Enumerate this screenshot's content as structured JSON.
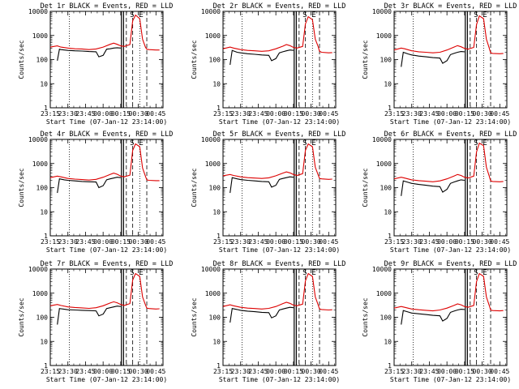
{
  "chart_data": {
    "type": "line",
    "y_scale": "log",
    "ylim": [
      1,
      10000
    ],
    "y_tick_values": [
      1,
      10,
      100,
      1000,
      10000
    ],
    "y_tick_labels": [
      "1",
      "10",
      "100",
      "1000",
      "10000"
    ],
    "x_range_hours": [
      23.25,
      24.85
    ],
    "x_tick_values": [
      23.25,
      23.5,
      23.75,
      24.0,
      24.25,
      24.5,
      24.75
    ],
    "x_tick_labels": [
      "23:15",
      "23:30",
      "23:45",
      "00:00",
      "00:15",
      "00:30",
      "00:45"
    ],
    "ylabel": "Counts/sec",
    "xlabel": "Start Time (07-Jan-12 23:14:00)",
    "dotted_lines_hours": [
      23.52,
      24.52
    ],
    "solid_lines_hours": [
      24.26,
      24.29
    ],
    "dashed_lines_hours": [
      24.33,
      24.42,
      24.62
    ],
    "markers": [
      {
        "label": "S",
        "x_hours": 24.41
      },
      {
        "label": "E",
        "x_hours": 24.54
      }
    ],
    "series_legend": {
      "black": "Events",
      "red": "LLD"
    },
    "panels": [
      {
        "title": "Det 1r BLACK = Events, RED = LLD",
        "series": [
          {
            "name": "Events",
            "color": "#000000",
            "x": [
              23.35,
              23.38,
              23.4,
              23.45,
              23.5,
              23.6,
              23.7,
              23.8,
              23.9,
              23.94,
              24.0,
              24.05,
              24.1,
              24.15,
              24.2,
              24.25
            ],
            "y": [
              90,
              270,
              260,
              250,
              240,
              230,
              225,
              215,
              210,
              130,
              150,
              270,
              280,
              300,
              310,
              300
            ]
          },
          {
            "name": "LLD",
            "color": "#dd0000",
            "x": [
              23.25,
              23.35,
              23.4,
              23.5,
              23.6,
              23.7,
              23.8,
              23.9,
              24.0,
              24.1,
              24.15,
              24.2,
              24.25,
              24.3,
              24.38,
              24.42,
              24.46,
              24.52,
              24.56,
              24.6,
              24.62,
              24.65,
              24.75,
              24.8
            ],
            "y": [
              330,
              370,
              330,
              300,
              280,
              275,
              260,
              275,
              330,
              430,
              480,
              430,
              370,
              350,
              420,
              4000,
              7000,
              5000,
              700,
              330,
              270,
              260,
              250,
              250
            ]
          }
        ]
      },
      {
        "title": "Det 2r BLACK = Events, RED = LLD",
        "series": [
          {
            "name": "Events",
            "color": "#000000",
            "x": [
              23.35,
              23.38,
              23.45,
              23.5,
              23.6,
              23.7,
              23.8,
              23.9,
              23.94,
              24.0,
              24.05,
              24.1,
              24.15,
              24.2,
              24.25
            ],
            "y": [
              60,
              240,
              200,
              190,
              175,
              165,
              155,
              150,
              90,
              110,
              190,
              210,
              230,
              250,
              240
            ]
          },
          {
            "name": "LLD",
            "color": "#dd0000",
            "x": [
              23.25,
              23.35,
              23.4,
              23.5,
              23.6,
              23.7,
              23.8,
              23.9,
              24.0,
              24.1,
              24.15,
              24.2,
              24.25,
              24.3,
              24.38,
              24.42,
              24.46,
              24.52,
              24.56,
              24.6,
              24.62,
              24.65,
              24.75,
              24.8
            ],
            "y": [
              280,
              330,
              300,
              260,
              240,
              230,
              220,
              230,
              280,
              360,
              420,
              380,
              320,
              300,
              350,
              3000,
              6000,
              4500,
              700,
              350,
              220,
              200,
              190,
              195
            ]
          }
        ]
      },
      {
        "title": "Det 3r BLACK = Events, RED = LLD",
        "series": [
          {
            "name": "Events",
            "color": "#000000",
            "x": [
              23.35,
              23.38,
              23.45,
              23.5,
              23.6,
              23.7,
              23.8,
              23.9,
              23.94,
              24.0,
              24.05,
              24.1,
              24.15,
              24.2,
              24.25
            ],
            "y": [
              50,
              200,
              170,
              155,
              140,
              130,
              120,
              115,
              70,
              90,
              160,
              180,
              200,
              215,
              210
            ]
          },
          {
            "name": "LLD",
            "color": "#dd0000",
            "x": [
              23.25,
              23.35,
              23.4,
              23.5,
              23.6,
              23.7,
              23.8,
              23.9,
              24.0,
              24.1,
              24.15,
              24.2,
              24.25,
              24.3,
              24.38,
              24.42,
              24.46,
              24.52,
              24.56,
              24.6,
              24.62,
              24.65,
              24.75,
              24.8
            ],
            "y": [
              250,
              300,
              280,
              230,
              210,
              200,
              190,
              200,
              250,
              330,
              380,
              340,
              290,
              270,
              320,
              2800,
              6500,
              5000,
              700,
              300,
              190,
              180,
              175,
              180
            ]
          }
        ]
      },
      {
        "title": "Det 4r BLACK = Events, RED = LLD",
        "series": [
          {
            "name": "Events",
            "color": "#000000",
            "x": [
              23.35,
              23.38,
              23.45,
              23.5,
              23.6,
              23.7,
              23.8,
              23.9,
              23.94,
              24.0,
              24.05,
              24.1,
              24.15,
              24.2,
              24.25
            ],
            "y": [
              60,
              230,
              210,
              200,
              190,
              180,
              175,
              170,
              100,
              120,
              210,
              230,
              250,
              270,
              260
            ]
          },
          {
            "name": "LLD",
            "color": "#dd0000",
            "x": [
              23.25,
              23.35,
              23.4,
              23.5,
              23.6,
              23.7,
              23.8,
              23.9,
              24.0,
              24.1,
              24.15,
              24.2,
              24.25,
              24.3,
              24.38,
              24.42,
              24.46,
              24.52,
              24.56,
              24.6,
              24.62,
              24.65,
              24.75,
              24.8
            ],
            "y": [
              260,
              300,
              280,
              240,
              225,
              215,
              205,
              220,
              270,
              350,
              400,
              360,
              300,
              280,
              330,
              3500,
              6500,
              5000,
              650,
              300,
              210,
              200,
              195,
              195
            ]
          }
        ]
      },
      {
        "title": "Det 5r BLACK = Events, RED = LLD",
        "series": [
          {
            "name": "Events",
            "color": "#000000",
            "x": [
              23.35,
              23.38,
              23.45,
              23.5,
              23.6,
              23.7,
              23.8,
              23.9,
              23.94,
              24.0,
              24.05,
              24.1,
              24.15,
              24.2,
              24.25
            ],
            "y": [
              60,
              260,
              230,
              215,
              200,
              190,
              180,
              175,
              105,
              125,
              220,
              240,
              260,
              280,
              270
            ]
          },
          {
            "name": "LLD",
            "color": "#dd0000",
            "x": [
              23.25,
              23.35,
              23.4,
              23.5,
              23.6,
              23.7,
              23.8,
              23.9,
              24.0,
              24.1,
              24.15,
              24.2,
              24.25,
              24.3,
              24.38,
              24.42,
              24.46,
              24.52,
              24.56,
              24.6,
              24.62,
              24.65,
              24.75,
              24.8
            ],
            "y": [
              310,
              350,
              320,
              280,
              260,
              250,
              240,
              255,
              310,
              400,
              450,
              410,
              350,
              320,
              380,
              3500,
              6500,
              5000,
              700,
              340,
              240,
              230,
              220,
              225
            ]
          }
        ]
      },
      {
        "title": "Det 6r BLACK = Events, RED = LLD",
        "series": [
          {
            "name": "Events",
            "color": "#000000",
            "x": [
              23.35,
              23.38,
              23.45,
              23.5,
              23.6,
              23.7,
              23.8,
              23.9,
              23.94,
              24.0,
              24.05,
              24.1,
              24.15,
              24.2,
              24.25
            ],
            "y": [
              45,
              190,
              165,
              150,
              135,
              125,
              115,
              110,
              65,
              85,
              150,
              170,
              190,
              210,
              200
            ]
          },
          {
            "name": "LLD",
            "color": "#dd0000",
            "x": [
              23.25,
              23.35,
              23.4,
              23.5,
              23.6,
              23.7,
              23.8,
              23.9,
              24.0,
              24.1,
              24.15,
              24.2,
              24.25,
              24.3,
              24.38,
              24.42,
              24.46,
              24.52,
              24.56,
              24.6,
              24.62,
              24.65,
              24.75,
              24.8
            ],
            "y": [
              230,
              270,
              250,
              210,
              195,
              185,
              175,
              190,
              230,
              300,
              350,
              320,
              270,
              250,
              300,
              3000,
              7000,
              5500,
              700,
              300,
              190,
              180,
              175,
              180
            ]
          }
        ]
      },
      {
        "title": "Det 7r BLACK = Events, RED = LLD",
        "series": [
          {
            "name": "Events",
            "color": "#000000",
            "x": [
              23.35,
              23.38,
              23.45,
              23.5,
              23.6,
              23.7,
              23.8,
              23.9,
              23.94,
              24.0,
              24.05,
              24.1,
              24.15,
              24.2,
              24.25
            ],
            "y": [
              50,
              230,
              215,
              205,
              200,
              195,
              190,
              185,
              115,
              135,
              230,
              250,
              270,
              290,
              280
            ]
          },
          {
            "name": "LLD",
            "color": "#dd0000",
            "x": [
              23.25,
              23.35,
              23.4,
              23.5,
              23.6,
              23.7,
              23.8,
              23.9,
              24.0,
              24.1,
              24.15,
              24.2,
              24.25,
              24.3,
              24.38,
              24.42,
              24.46,
              24.52,
              24.56,
              24.6,
              24.62,
              24.65,
              24.75,
              24.8
            ],
            "y": [
              300,
              340,
              310,
              270,
              255,
              245,
              235,
              250,
              300,
              390,
              440,
              400,
              340,
              310,
              370,
              3500,
              6500,
              5000,
              700,
              330,
              240,
              230,
              220,
              225
            ]
          }
        ]
      },
      {
        "title": "Det 8r BLACK = Events, RED = LLD",
        "series": [
          {
            "name": "Events",
            "color": "#000000",
            "x": [
              23.35,
              23.38,
              23.45,
              23.5,
              23.6,
              23.7,
              23.8,
              23.9,
              23.94,
              24.0,
              24.05,
              24.1,
              24.15,
              24.2,
              24.25
            ],
            "y": [
              60,
              230,
              210,
              195,
              180,
              170,
              160,
              155,
              95,
              115,
              200,
              220,
              240,
              260,
              250
            ]
          },
          {
            "name": "LLD",
            "color": "#dd0000",
            "x": [
              23.25,
              23.35,
              23.4,
              23.5,
              23.6,
              23.7,
              23.8,
              23.9,
              24.0,
              24.1,
              24.15,
              24.2,
              24.25,
              24.3,
              24.38,
              24.42,
              24.46,
              24.52,
              24.56,
              24.6,
              24.62,
              24.65,
              24.75,
              24.8
            ],
            "y": [
              280,
              330,
              300,
              260,
              240,
              230,
              220,
              235,
              280,
              370,
              420,
              380,
              320,
              300,
              350,
              3200,
              6500,
              5000,
              700,
              330,
              220,
              210,
              200,
              205
            ]
          }
        ]
      },
      {
        "title": "Det 9r BLACK = Events, RED = LLD",
        "series": [
          {
            "name": "Events",
            "color": "#000000",
            "x": [
              23.35,
              23.38,
              23.45,
              23.5,
              23.6,
              23.7,
              23.8,
              23.9,
              23.94,
              24.0,
              24.05,
              24.1,
              24.15,
              24.2,
              24.25
            ],
            "y": [
              50,
              190,
              165,
              150,
              140,
              130,
              120,
              115,
              70,
              90,
              160,
              180,
              200,
              215,
              210
            ]
          },
          {
            "name": "LLD",
            "color": "#dd0000",
            "x": [
              23.25,
              23.35,
              23.4,
              23.5,
              23.6,
              23.7,
              23.8,
              23.9,
              24.0,
              24.1,
              24.15,
              24.2,
              24.25,
              24.3,
              24.38,
              24.42,
              24.46,
              24.52,
              24.56,
              24.6,
              24.62,
              24.65,
              24.75,
              24.8
            ],
            "y": [
              240,
              280,
              260,
              220,
              205,
              195,
              185,
              200,
              240,
              310,
              360,
              330,
              280,
              260,
              310,
              3000,
              6500,
              5000,
              700,
              310,
              200,
              190,
              185,
              190
            ]
          }
        ]
      }
    ]
  }
}
